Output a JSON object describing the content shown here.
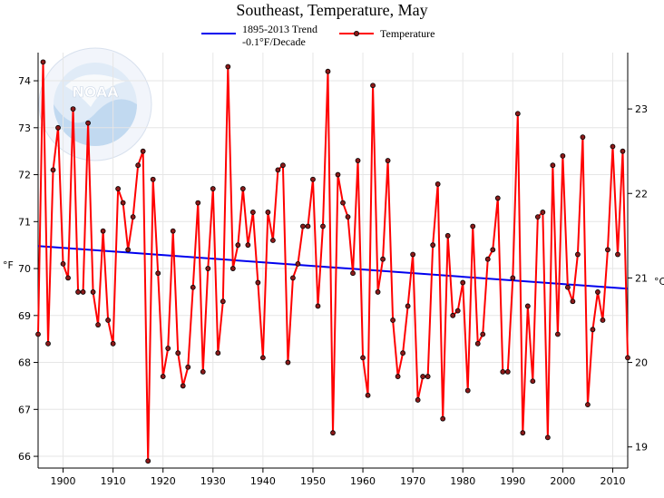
{
  "chart_data": {
    "type": "line",
    "title": "Southeast, Temperature, May",
    "legend_position": "top",
    "legend": [
      {
        "label_line1": "1895-2013 Trend",
        "label_line2": "-0.1°F/Decade",
        "color": "#0000ee"
      },
      {
        "label": "Temperature",
        "color": "#ff0000"
      }
    ],
    "xlim": [
      1895,
      2013
    ],
    "x_ticks": [
      1900,
      1910,
      1920,
      1930,
      1940,
      1950,
      1960,
      1970,
      1980,
      1990,
      2000,
      2010
    ],
    "ylim_left": [
      65.75,
      74.6
    ],
    "y_ticks_left": [
      66,
      67,
      68,
      69,
      70,
      71,
      72,
      73,
      74
    ],
    "ylabel_left": "°F",
    "y_ticks_right": [
      19,
      20,
      21,
      22,
      23
    ],
    "ylabel_right": "°C",
    "grid": true,
    "watermark": "NOAA",
    "series": [
      {
        "name": "Temperature",
        "color": "#ff0000",
        "marker_fill": "#8b1a1a",
        "x": [
          1895,
          1896,
          1897,
          1898,
          1899,
          1900,
          1901,
          1902,
          1903,
          1904,
          1905,
          1906,
          1907,
          1908,
          1909,
          1910,
          1911,
          1912,
          1913,
          1914,
          1915,
          1916,
          1917,
          1918,
          1919,
          1920,
          1921,
          1922,
          1923,
          1924,
          1925,
          1926,
          1927,
          1928,
          1929,
          1930,
          1931,
          1932,
          1933,
          1934,
          1935,
          1936,
          1937,
          1938,
          1939,
          1940,
          1941,
          1942,
          1943,
          1944,
          1945,
          1946,
          1947,
          1948,
          1949,
          1950,
          1951,
          1952,
          1953,
          1954,
          1955,
          1956,
          1957,
          1958,
          1959,
          1960,
          1961,
          1962,
          1963,
          1964,
          1965,
          1966,
          1967,
          1968,
          1969,
          1970,
          1971,
          1972,
          1973,
          1974,
          1975,
          1976,
          1977,
          1978,
          1979,
          1980,
          1981,
          1982,
          1983,
          1984,
          1985,
          1986,
          1987,
          1988,
          1989,
          1990,
          1991,
          1992,
          1993,
          1994,
          1995,
          1996,
          1997,
          1998,
          1999,
          2000,
          2001,
          2002,
          2003,
          2004,
          2005,
          2006,
          2007,
          2008,
          2009,
          2010,
          2011,
          2012,
          2013
        ],
        "values": [
          68.6,
          74.4,
          68.4,
          72.1,
          73.0,
          70.1,
          69.8,
          73.4,
          69.5,
          69.5,
          73.1,
          69.5,
          68.8,
          70.8,
          68.9,
          68.4,
          71.7,
          71.4,
          70.4,
          71.1,
          72.2,
          72.5,
          65.9,
          71.9,
          69.9,
          67.7,
          68.3,
          70.8,
          68.2,
          67.5,
          67.9,
          69.6,
          71.4,
          67.8,
          70.0,
          71.7,
          68.2,
          69.3,
          74.3,
          70.0,
          70.5,
          71.7,
          70.5,
          71.2,
          69.7,
          68.1,
          71.2,
          70.6,
          72.1,
          72.2,
          68.0,
          69.8,
          70.1,
          70.9,
          70.9,
          71.9,
          69.2,
          70.9,
          74.2,
          66.5,
          72.0,
          71.4,
          71.1,
          69.9,
          72.3,
          68.1,
          67.3,
          73.9,
          69.5,
          70.2,
          72.3,
          68.9,
          67.7,
          68.2,
          69.2,
          70.3,
          67.2,
          67.7,
          67.7,
          70.5,
          71.8,
          66.8,
          70.7,
          69.0,
          69.1,
          69.7,
          67.4,
          70.9,
          68.4,
          68.6,
          70.2,
          70.4,
          71.5,
          67.8,
          67.8,
          69.8,
          73.3,
          66.5,
          69.2,
          67.6,
          71.1,
          71.2,
          66.4,
          72.2,
          68.6,
          72.4,
          69.6,
          69.3,
          70.3,
          72.8,
          67.1,
          68.7,
          69.5,
          68.9,
          70.4,
          72.6,
          70.3,
          72.5,
          68.1
        ]
      },
      {
        "name": "1895-2013 Trend",
        "color": "#0000ee",
        "x": [
          1895,
          2013
        ],
        "values": [
          70.48,
          69.57
        ]
      }
    ]
  }
}
